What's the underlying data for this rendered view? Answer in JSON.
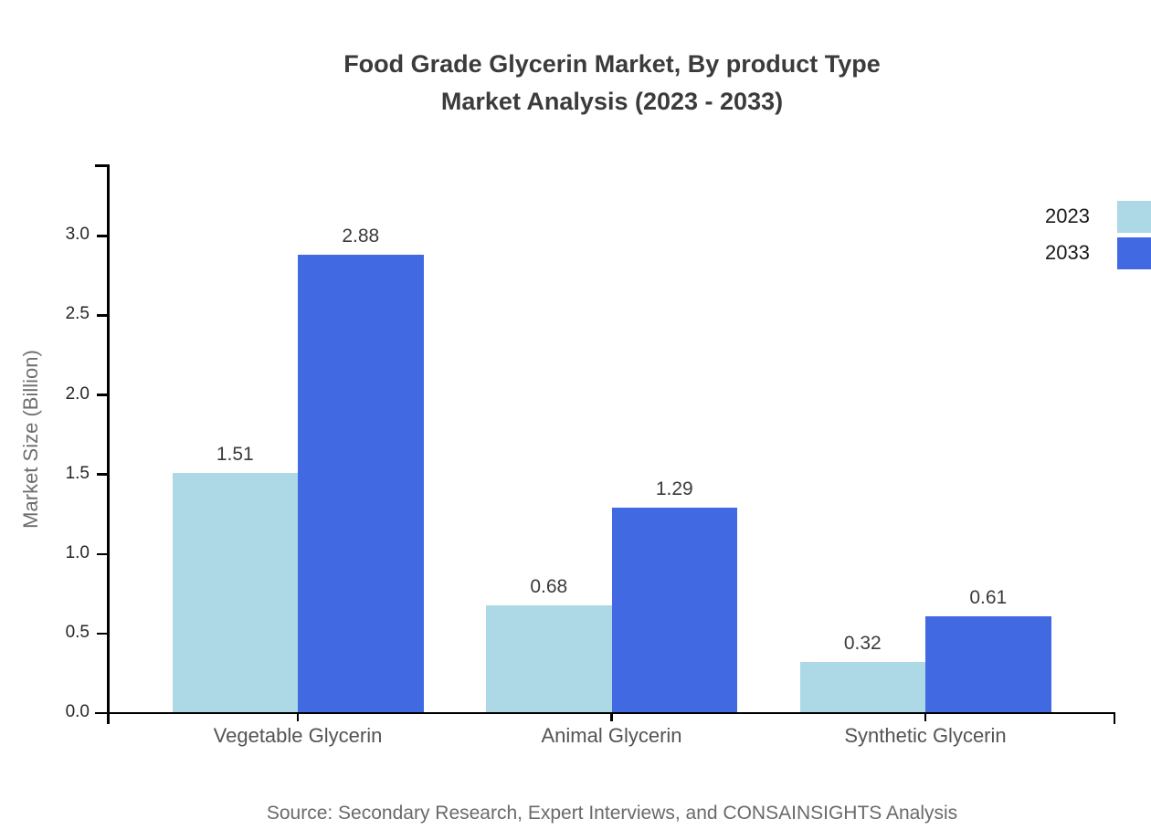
{
  "title": {
    "line1": "Food Grade Glycerin Market, By product Type",
    "line2": "Market Analysis (2023 - 2033)"
  },
  "chart_data": {
    "type": "bar",
    "categories": [
      "Vegetable Glycerin",
      "Animal Glycerin",
      "Synthetic Glycerin"
    ],
    "series": [
      {
        "name": "2023",
        "color": "#ADD8E6",
        "values": [
          1.51,
          0.68,
          0.32
        ]
      },
      {
        "name": "2033",
        "color": "#4169E1",
        "values": [
          2.88,
          1.29,
          0.61
        ]
      }
    ],
    "title": "Food Grade Glycerin Market, By product Type Market Analysis (2023 - 2033)",
    "xlabel": "",
    "ylabel": "Market Size (Billion)",
    "ylim": [
      0,
      3.45
    ],
    "yticks": [
      0.0,
      0.5,
      1.0,
      1.5,
      2.0,
      2.5,
      3.0
    ],
    "grid": false,
    "value_labels": true,
    "legend_position": "top-right"
  },
  "source": "Source: Secondary Research, Expert Interviews, and CONSAINSIGHTS Analysis",
  "colors": {
    "axis": "#000000",
    "title_text": "#3b3b3b",
    "y_tick_label": "#262626",
    "category_label": "#545454",
    "axis_title": "#6e6e6e",
    "value_label": "#3b3b3b",
    "source_text": "#6a6a6a",
    "series_2023": "#ADD8E6",
    "series_2033": "#4169E1"
  }
}
